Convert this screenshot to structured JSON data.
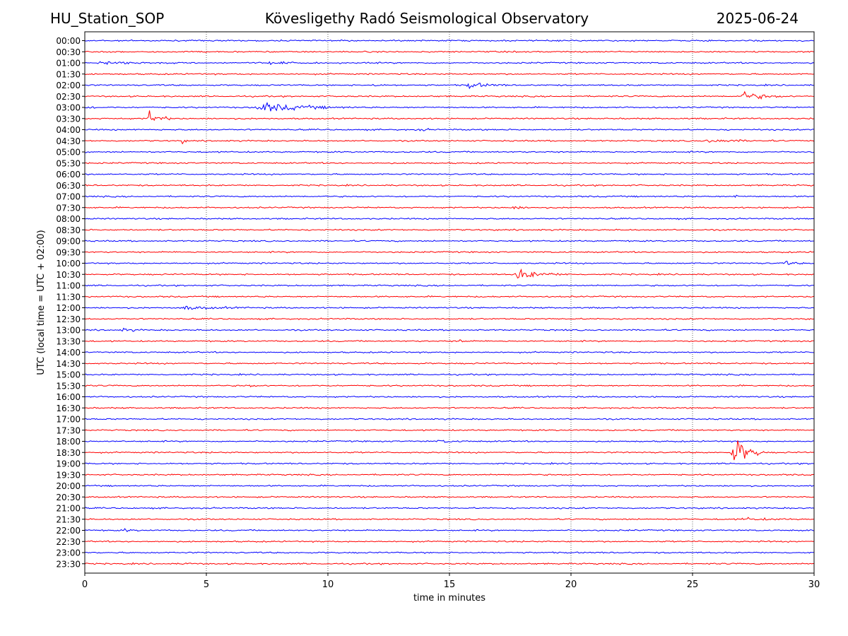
{
  "header": {
    "station": "HU_Station_SOP",
    "title": "Kövesligethy Radó Seismological Observatory",
    "date": "2025-06-24"
  },
  "chart_data": {
    "type": "line",
    "title": "Kövesligethy Radó Seismological Observatory",
    "xlabel": "time in minutes",
    "ylabel": "UTC (local time = UTC + 02:00)",
    "xlim": [
      0,
      30
    ],
    "x_ticks": [
      0,
      5,
      10,
      15,
      20,
      25,
      30
    ],
    "grid": "vertical dotted lines at x ticks",
    "trace_colors": [
      "#0000ff",
      "#ff0000"
    ],
    "row_labels": [
      "00:00",
      "00:30",
      "01:00",
      "01:30",
      "02:00",
      "02:30",
      "03:00",
      "03:30",
      "04:00",
      "04:30",
      "05:00",
      "05:30",
      "06:00",
      "06:30",
      "07:00",
      "07:30",
      "08:00",
      "08:30",
      "09:00",
      "09:30",
      "10:00",
      "10:30",
      "11:00",
      "11:30",
      "12:00",
      "12:30",
      "13:00",
      "13:30",
      "14:00",
      "14:30",
      "15:00",
      "15:30",
      "16:00",
      "16:30",
      "17:00",
      "17:30",
      "18:00",
      "18:30",
      "19:00",
      "19:30",
      "20:00",
      "20:30",
      "21:00",
      "21:30",
      "22:00",
      "22:30",
      "23:00",
      "23:30"
    ],
    "events": [
      {
        "row": "01:00",
        "start": 0.5,
        "end": 3.5,
        "amp": 0.35
      },
      {
        "row": "01:00",
        "start": 7.5,
        "end": 9.5,
        "amp": 0.25
      },
      {
        "row": "02:00",
        "start": 11.8,
        "end": 12.4,
        "amp": 0.45
      },
      {
        "row": "02:00",
        "start": 15.7,
        "end": 17.5,
        "amp": 0.7
      },
      {
        "row": "02:30",
        "start": 27.0,
        "end": 29.0,
        "amp": 1.0
      },
      {
        "row": "03:00",
        "start": 0.0,
        "end": 0.7,
        "amp": 0.3
      },
      {
        "row": "03:00",
        "start": 7.0,
        "end": 11.2,
        "amp": 1.1
      },
      {
        "row": "03:30",
        "start": 2.6,
        "end": 3.6,
        "amp": 1.8
      },
      {
        "row": "04:00",
        "start": 13.7,
        "end": 14.3,
        "amp": 0.5
      },
      {
        "row": "04:30",
        "start": 4.0,
        "end": 4.3,
        "amp": 0.5
      },
      {
        "row": "04:30",
        "start": 25.5,
        "end": 28.5,
        "amp": 0.35
      },
      {
        "row": "07:00",
        "start": 26.7,
        "end": 26.9,
        "amp": 0.8
      },
      {
        "row": "07:30",
        "start": 17.5,
        "end": 18.5,
        "amp": 0.45
      },
      {
        "row": "10:00",
        "start": 28.8,
        "end": 29.6,
        "amp": 0.45
      },
      {
        "row": "10:30",
        "start": 17.6,
        "end": 20.0,
        "amp": 1.2
      },
      {
        "row": "12:00",
        "start": 3.8,
        "end": 7.0,
        "amp": 0.4
      },
      {
        "row": "13:00",
        "start": 1.5,
        "end": 2.6,
        "amp": 0.35
      },
      {
        "row": "13:30",
        "start": 15.4,
        "end": 15.9,
        "amp": 0.5
      },
      {
        "row": "15:30",
        "start": 6.6,
        "end": 7.2,
        "amp": 0.35
      },
      {
        "row": "18:00",
        "start": 14.5,
        "end": 16.0,
        "amp": 0.3
      },
      {
        "row": "18:30",
        "start": 26.6,
        "end": 28.0,
        "amp": 4.5
      },
      {
        "row": "21:30",
        "start": 27.0,
        "end": 29.5,
        "amp": 0.3
      },
      {
        "row": "22:00",
        "start": 1.6,
        "end": 2.2,
        "amp": 0.35
      },
      {
        "row": "23:30",
        "start": 4.1,
        "end": 4.6,
        "amp": 0.35
      }
    ]
  }
}
